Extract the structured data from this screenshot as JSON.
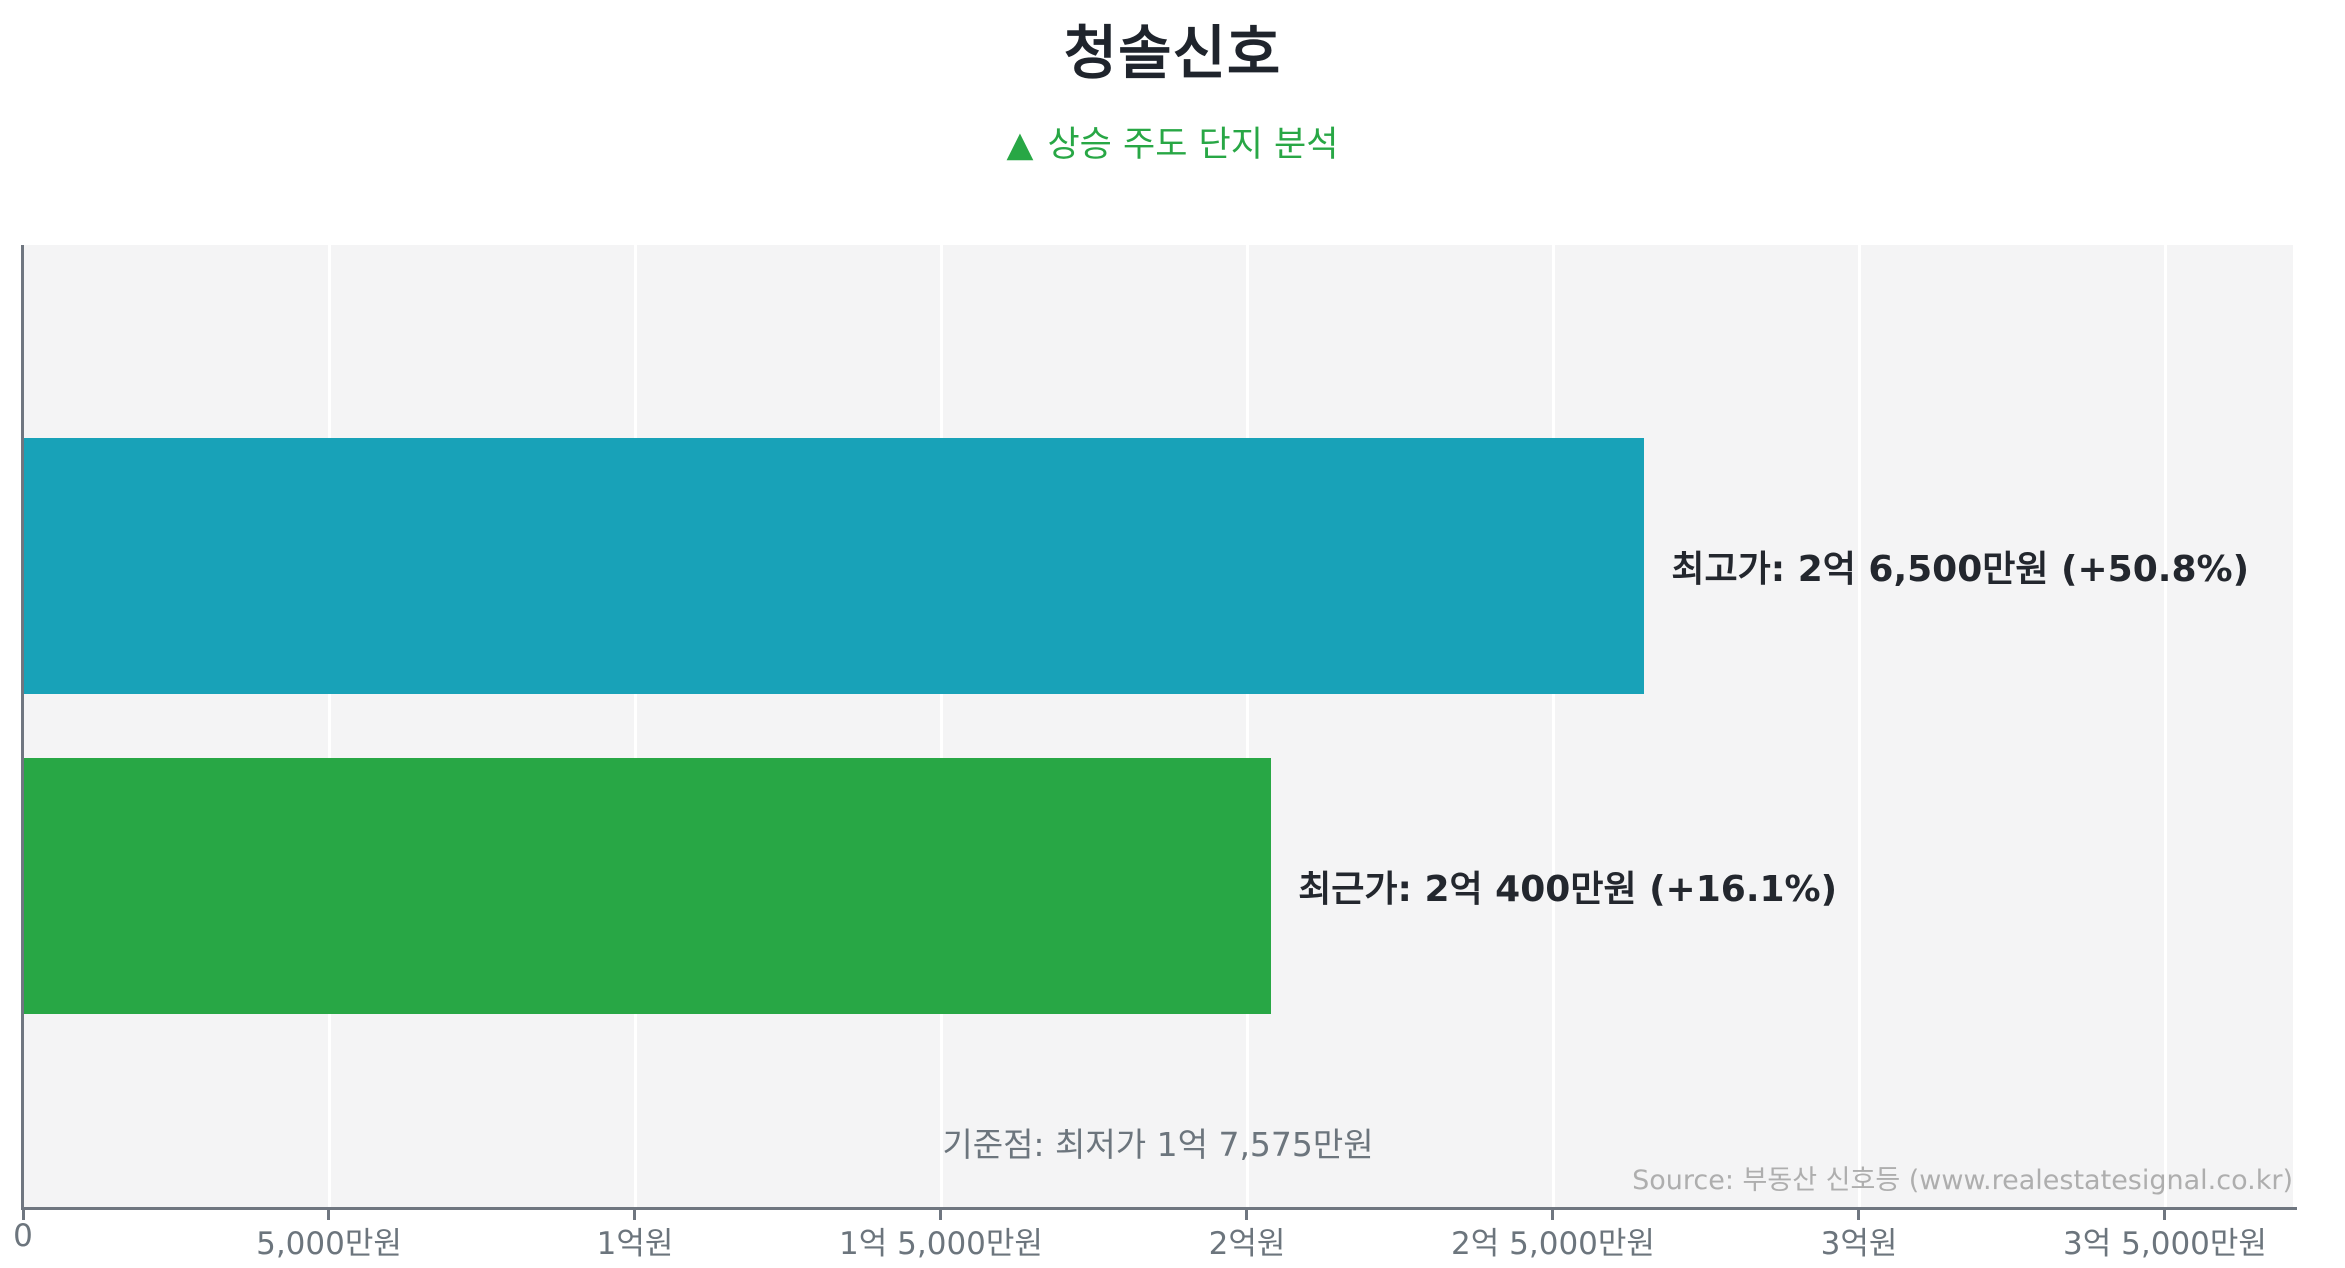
{
  "title": "청솔신호",
  "subtitle": {
    "marker": "▲",
    "text": "상승 주도 단지 분석",
    "color": "#28a745"
  },
  "chart_data": {
    "type": "bar",
    "orientation": "horizontal",
    "title": "청솔신호",
    "subtitle": "▲ 상승 주도 단지 분석",
    "unit": "만원",
    "series": [
      {
        "key": "highest-price",
        "name": "최고가",
        "value": 26500,
        "label": "최고가: 2억 6,500만원 (+50.8%)",
        "pct_change": "+50.8%",
        "color": "#18a2b8"
      },
      {
        "key": "recent-price",
        "name": "최근가",
        "value": 20400,
        "label": "최근가: 2억 400만원 (+16.1%)",
        "pct_change": "+16.1%",
        "color": "#28a745"
      }
    ],
    "baseline": {
      "label": "기준점: 최저가 1억 7,575만원",
      "name": "기준점",
      "value": 17575
    },
    "x_axis": {
      "min": 0,
      "max": 37100,
      "ticks": [
        {
          "value": 0,
          "label": "0"
        },
        {
          "value": 5000,
          "label": "5,000만원"
        },
        {
          "value": 10000,
          "label": "1억원"
        },
        {
          "value": 15000,
          "label": "1억 5,000만원"
        },
        {
          "value": 20000,
          "label": "2억원"
        },
        {
          "value": 25000,
          "label": "2억 5,000만원"
        },
        {
          "value": 30000,
          "label": "3억원"
        },
        {
          "value": 35000,
          "label": "3억 5,000만원"
        }
      ]
    },
    "grid": "vertical",
    "legend": "none",
    "plot_bg": "#f4f4f5",
    "bar_height_frac": 0.266
  },
  "source": "Source: 부동산 신호등 (www.realestatesignal.co.kr)"
}
